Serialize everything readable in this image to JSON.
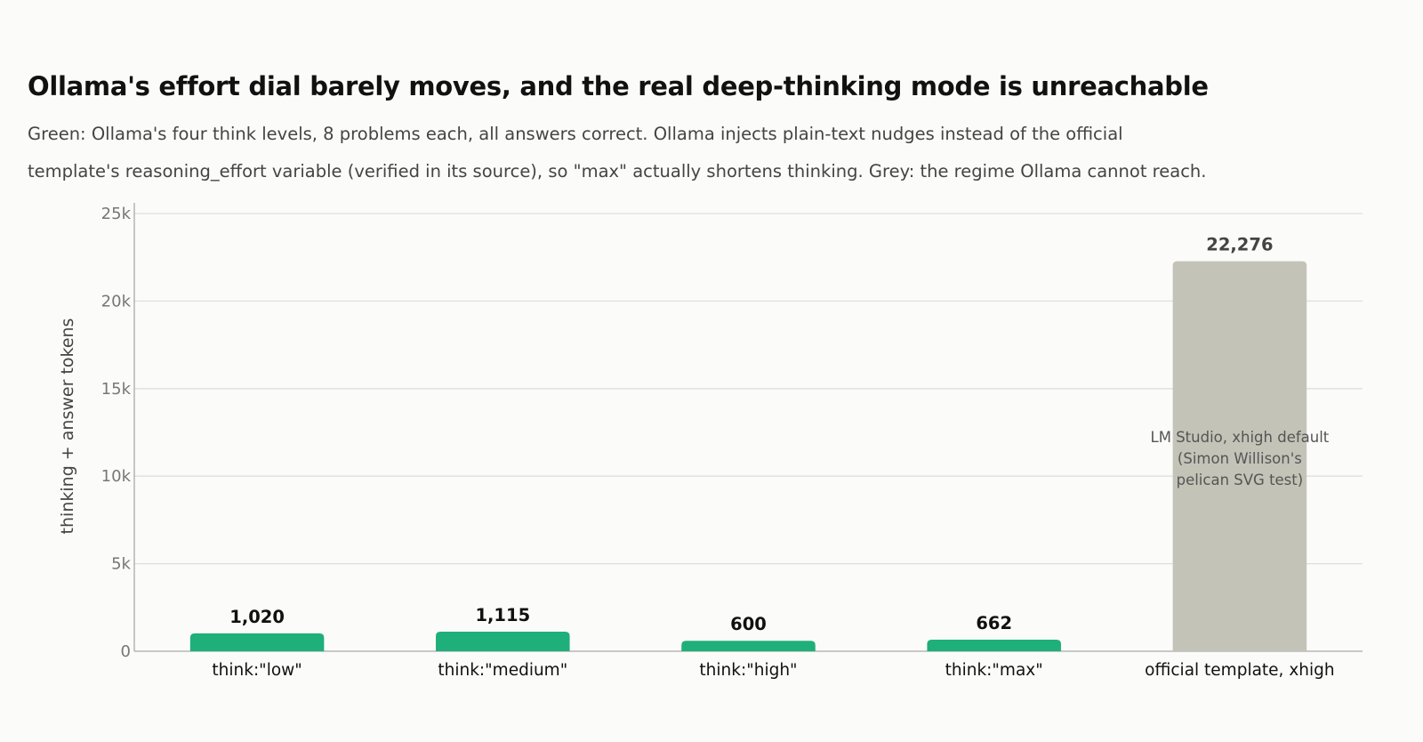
{
  "chart_data": {
    "type": "bar",
    "title": "Ollama's effort dial barely moves, and the real deep-thinking mode is unreachable",
    "subtitle": "Green: Ollama's four think levels, 8 problems each, all answers correct. Ollama injects plain-text nudges instead of the official template's reasoning_effort variable (verified in its source), so \"max\" actually shortens thinking. Grey: the regime Ollama cannot reach.",
    "xlabel": "",
    "ylabel": "thinking + answer tokens",
    "ylim": [
      0,
      25000
    ],
    "yticks": [
      {
        "value": 0,
        "label": "0"
      },
      {
        "value": 5000,
        "label": "5k"
      },
      {
        "value": 10000,
        "label": "10k"
      },
      {
        "value": 15000,
        "label": "15k"
      },
      {
        "value": 20000,
        "label": "20k"
      },
      {
        "value": 25000,
        "label": "25k"
      }
    ],
    "grid": true,
    "categories": [
      "think:\"low\"",
      "think:\"medium\"",
      "think:\"high\"",
      "think:\"max\"",
      "official template, xhigh"
    ],
    "values": [
      1020,
      1115,
      600,
      662,
      22276
    ],
    "value_labels": [
      "1,020",
      "1,115",
      "600",
      "662",
      "22,276"
    ],
    "bar_colors": [
      "#1faf7a",
      "#1faf7a",
      "#1faf7a",
      "#1faf7a",
      "#c3c3b8"
    ],
    "value_label_colors": [
      "#111111",
      "#111111",
      "#111111",
      "#111111",
      "#444444"
    ],
    "annotation": {
      "category_index": 4,
      "lines": [
        "LM Studio, xhigh default",
        "(Simon Willison's",
        "pelican SVG test)"
      ]
    }
  }
}
